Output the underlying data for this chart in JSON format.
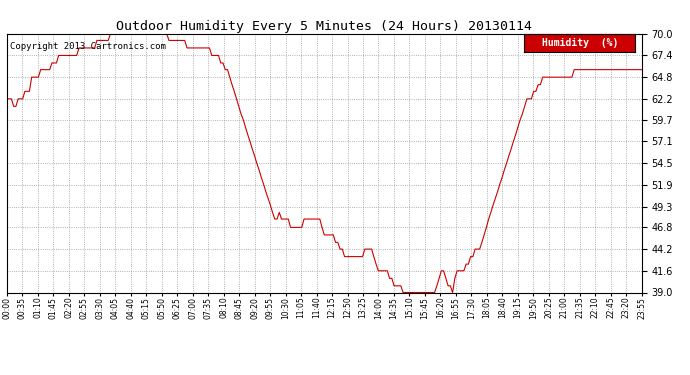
{
  "title": "Outdoor Humidity Every 5 Minutes (24 Hours) 20130114",
  "copyright": "Copyright 2013 Cartronics.com",
  "legend_label": "Humidity  (%)",
  "legend_bg": "#cc0000",
  "legend_text_color": "#ffffff",
  "line_color": "#cc0000",
  "background_color": "#ffffff",
  "grid_color": "#aaaaaa",
  "ylim": [
    39.0,
    70.0
  ],
  "yticks": [
    39.0,
    41.6,
    44.2,
    46.8,
    49.3,
    51.9,
    54.5,
    57.1,
    59.7,
    62.2,
    64.8,
    67.4,
    70.0
  ],
  "humidity_data": [
    62.2,
    62.2,
    62.2,
    61.3,
    61.3,
    62.2,
    62.2,
    62.2,
    63.1,
    63.1,
    63.1,
    64.8,
    64.8,
    64.8,
    64.8,
    65.7,
    65.7,
    65.7,
    65.7,
    65.7,
    66.5,
    66.5,
    66.5,
    67.4,
    67.4,
    67.4,
    67.4,
    67.4,
    67.4,
    67.4,
    67.4,
    67.4,
    68.3,
    68.3,
    68.3,
    68.3,
    68.3,
    68.3,
    68.3,
    68.3,
    69.2,
    69.2,
    69.2,
    69.2,
    69.2,
    69.2,
    70.0,
    70.0,
    70.0,
    70.0,
    70.0,
    70.0,
    70.0,
    70.0,
    70.0,
    70.0,
    70.0,
    70.0,
    70.0,
    70.0,
    70.0,
    70.0,
    70.0,
    70.0,
    70.0,
    70.0,
    70.0,
    70.0,
    70.0,
    70.0,
    70.0,
    70.0,
    69.2,
    69.2,
    69.2,
    69.2,
    69.2,
    69.2,
    69.2,
    69.2,
    68.3,
    68.3,
    68.3,
    68.3,
    68.3,
    68.3,
    68.3,
    68.3,
    68.3,
    68.3,
    68.3,
    67.4,
    67.4,
    67.4,
    67.4,
    66.5,
    66.5,
    65.7,
    65.7,
    64.8,
    63.9,
    63.1,
    62.2,
    61.3,
    60.4,
    59.7,
    58.8,
    57.9,
    57.1,
    56.2,
    55.4,
    54.5,
    53.7,
    52.8,
    52.0,
    51.1,
    50.3,
    49.5,
    48.6,
    47.8,
    47.8,
    48.6,
    47.8,
    47.8,
    47.8,
    47.8,
    46.8,
    46.8,
    46.8,
    46.8,
    46.8,
    46.8,
    47.8,
    47.8,
    47.8,
    47.8,
    47.8,
    47.8,
    47.8,
    47.8,
    46.8,
    45.9,
    45.9,
    45.9,
    45.9,
    45.9,
    45.0,
    45.0,
    44.2,
    44.2,
    43.3,
    43.3,
    43.3,
    43.3,
    43.3,
    43.3,
    43.3,
    43.3,
    43.3,
    44.2,
    44.2,
    44.2,
    44.2,
    43.3,
    42.4,
    41.6,
    41.6,
    41.6,
    41.6,
    41.6,
    40.7,
    40.7,
    39.8,
    39.8,
    39.8,
    39.8,
    39.0,
    39.0,
    39.0,
    39.0,
    39.0,
    39.0,
    39.0,
    39.0,
    39.0,
    39.0,
    39.0,
    39.0,
    39.0,
    39.0,
    39.0,
    39.8,
    40.7,
    41.6,
    41.6,
    40.7,
    39.8,
    39.8,
    39.0,
    40.7,
    41.6,
    41.6,
    41.6,
    41.6,
    42.4,
    42.4,
    43.3,
    43.3,
    44.2,
    44.2,
    44.2,
    45.0,
    45.9,
    46.8,
    47.8,
    48.6,
    49.5,
    50.3,
    51.1,
    52.0,
    52.8,
    53.7,
    54.5,
    55.4,
    56.2,
    57.1,
    57.9,
    58.8,
    59.7,
    60.4,
    61.3,
    62.2,
    62.2,
    62.2,
    63.1,
    63.1,
    63.9,
    63.9,
    64.8,
    64.8,
    64.8,
    64.8,
    64.8,
    64.8,
    64.8,
    64.8,
    64.8,
    64.8,
    64.8,
    64.8,
    64.8,
    64.8,
    65.7,
    65.7,
    65.7,
    65.7,
    65.7,
    65.7,
    65.7,
    65.7,
    65.7,
    65.7,
    65.7,
    65.7,
    65.7,
    65.7,
    65.7,
    65.7,
    65.7,
    65.7,
    65.7,
    65.7,
    65.7,
    65.7,
    65.7,
    65.7,
    65.7,
    65.7,
    65.7,
    65.7,
    65.7,
    65.7,
    65.7
  ],
  "x_tick_labels": [
    "00:00",
    "00:35",
    "01:10",
    "01:45",
    "02:20",
    "02:55",
    "03:30",
    "04:05",
    "04:40",
    "05:15",
    "05:50",
    "06:25",
    "07:00",
    "07:35",
    "08:10",
    "08:45",
    "09:20",
    "09:55",
    "10:30",
    "11:05",
    "11:40",
    "12:15",
    "12:50",
    "13:25",
    "14:00",
    "14:35",
    "15:10",
    "15:45",
    "16:20",
    "16:55",
    "17:30",
    "18:05",
    "18:40",
    "19:15",
    "19:50",
    "20:25",
    "21:00",
    "21:35",
    "22:10",
    "22:45",
    "23:20",
    "23:55"
  ]
}
